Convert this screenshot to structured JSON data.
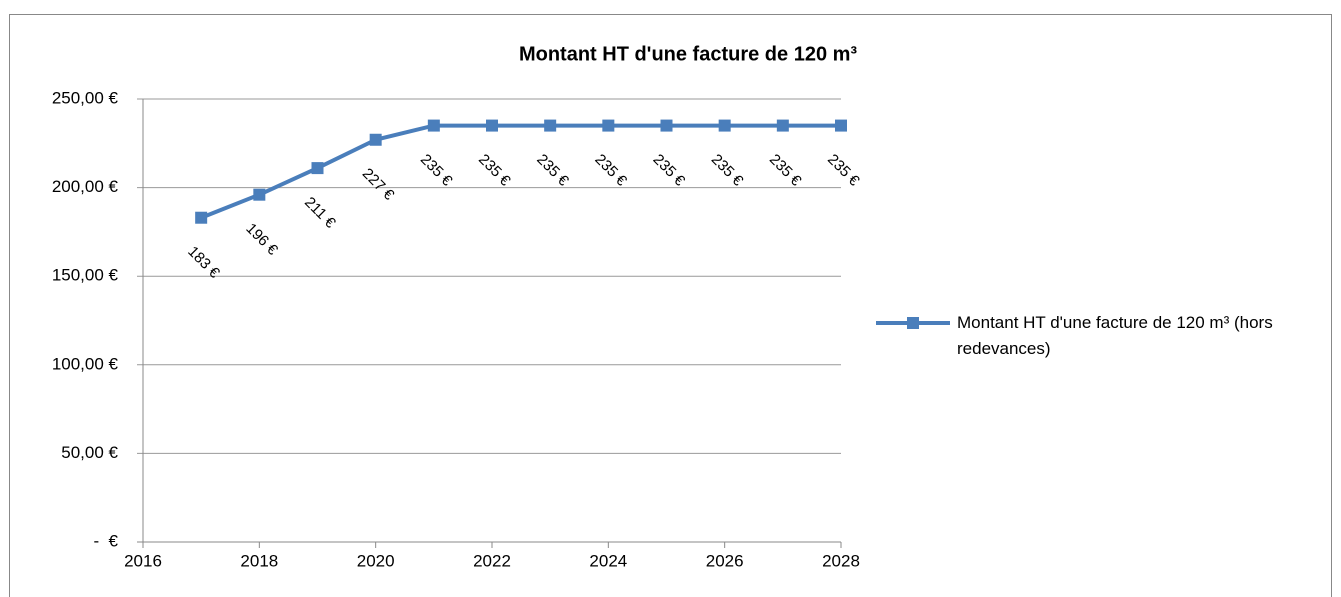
{
  "chart_data": {
    "type": "line",
    "title": "Montant HT d'une facture de 120 m³",
    "x": [
      2017,
      2018,
      2019,
      2020,
      2021,
      2022,
      2023,
      2024,
      2025,
      2026,
      2027,
      2028
    ],
    "series": [
      {
        "name": "Montant HT d'une facture de 120 m³ (hors redevances)",
        "color": "#4a7ebb",
        "values": [
          183,
          196,
          211,
          227,
          235,
          235,
          235,
          235,
          235,
          235,
          235,
          235
        ],
        "value_labels": [
          "183 €",
          "196 €",
          "211 €",
          "227 €",
          "235 €",
          "235 €",
          "235 €",
          "235 €",
          "235 €",
          "235 €",
          "235 €",
          "235 €"
        ]
      }
    ],
    "xlim": [
      2016,
      2028
    ],
    "xticks": [
      2016,
      2018,
      2020,
      2022,
      2024,
      2026,
      2028
    ],
    "ylim": [
      0,
      250
    ],
    "yticks": [
      {
        "value": 0,
        "label": "-  €"
      },
      {
        "value": 50,
        "label": "50,00 €"
      },
      {
        "value": 100,
        "label": "100,00 €"
      },
      {
        "value": 150,
        "label": "150,00 €"
      },
      {
        "value": 200,
        "label": "200,00 €"
      },
      {
        "value": 250,
        "label": "250,00 €"
      }
    ],
    "grid": true,
    "legend": "right"
  }
}
